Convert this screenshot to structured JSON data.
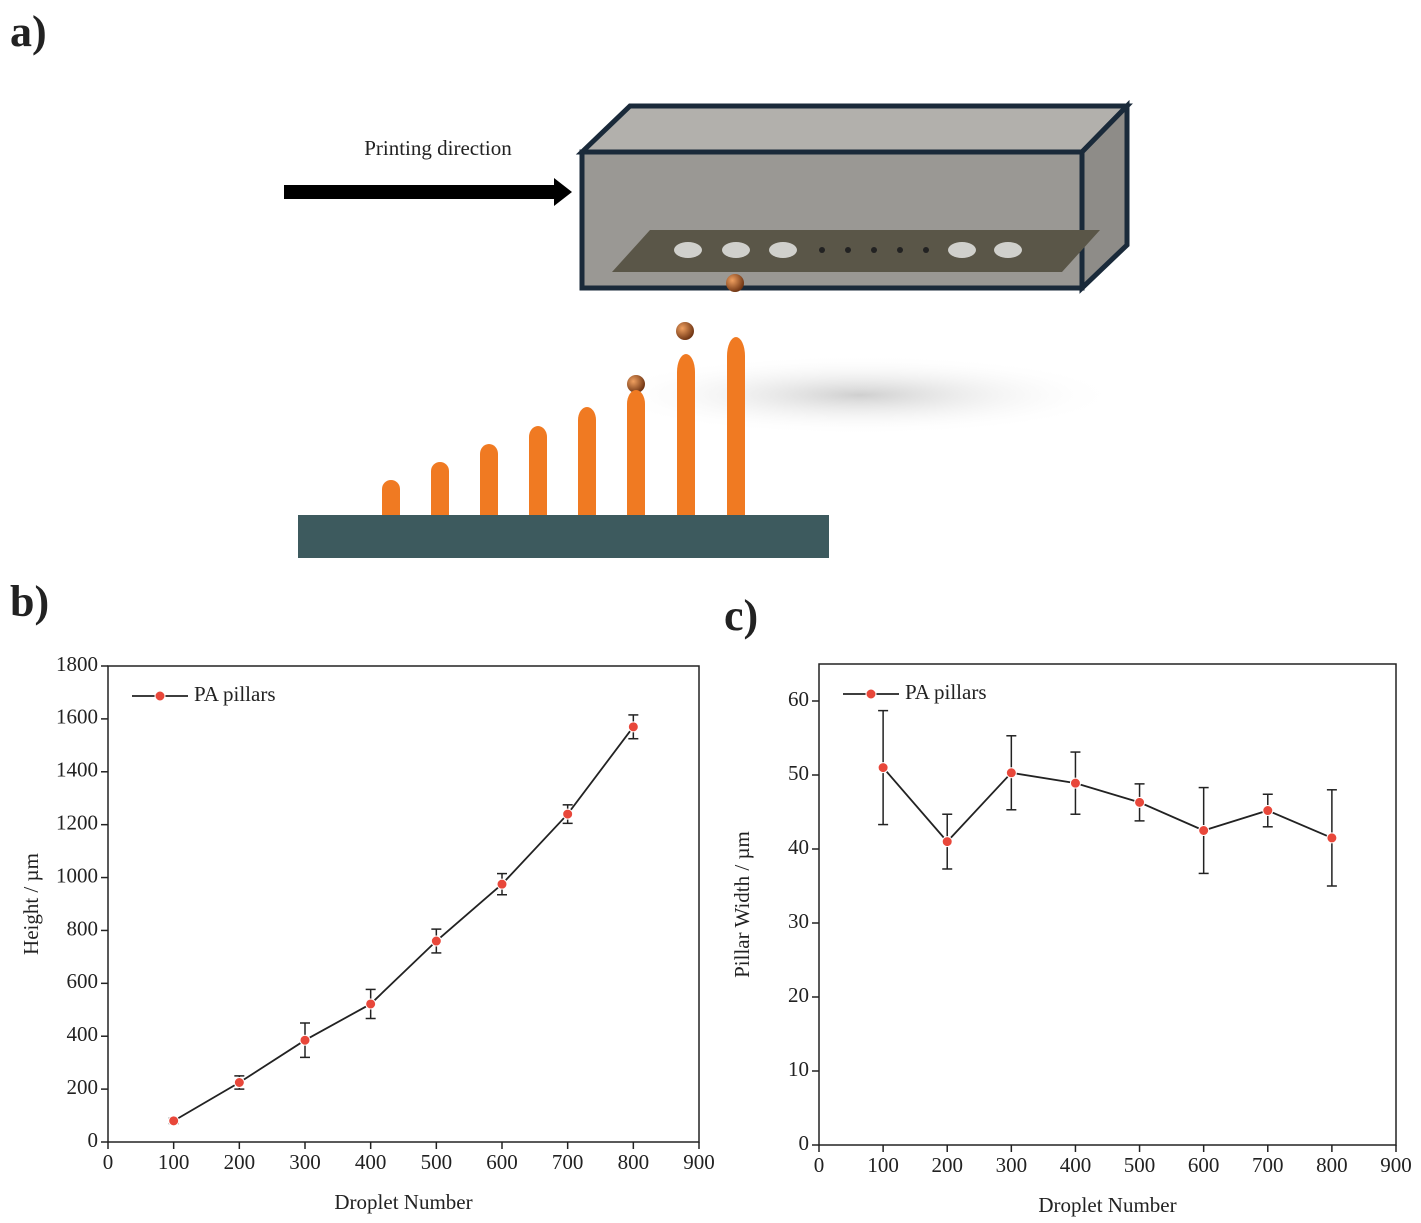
{
  "panel_labels": [
    "a)",
    "b)",
    "c)"
  ],
  "diagram": {
    "arrow_label": "Printing direction"
  },
  "chart_data": [
    {
      "type": "line",
      "xlabel": "Droplet Number",
      "ylabel": "Height / µm",
      "x": [
        100,
        200,
        300,
        400,
        500,
        600,
        700,
        800
      ],
      "series": [
        {
          "name": "PA pillars",
          "color": "#e8473a",
          "values": [
            80,
            225,
            385,
            522,
            760,
            975,
            1240,
            1570
          ],
          "errors": [
            10,
            25,
            65,
            55,
            45,
            40,
            35,
            45
          ]
        }
      ],
      "xlim": [
        0,
        900
      ],
      "xticks": [
        0,
        100,
        200,
        300,
        400,
        500,
        600,
        700,
        800,
        900
      ],
      "ylim": [
        0,
        1800
      ],
      "yticks": [
        0,
        200,
        400,
        600,
        800,
        1000,
        1200,
        1400,
        1600,
        1800
      ],
      "legend": "upper left"
    },
    {
      "type": "line",
      "xlabel": "Droplet Number",
      "ylabel": "Pillar Width / µm",
      "x": [
        100,
        200,
        300,
        400,
        500,
        600,
        700,
        800
      ],
      "series": [
        {
          "name": "PA pillars",
          "color": "#e8473a",
          "values": [
            51,
            41,
            50.3,
            48.9,
            46.3,
            42.5,
            45.2,
            41.5
          ],
          "errors": [
            7.7,
            3.7,
            5,
            4.2,
            2.5,
            5.8,
            2.2,
            6.5
          ]
        }
      ],
      "xlim": [
        0,
        900
      ],
      "xticks": [
        0,
        100,
        200,
        300,
        400,
        500,
        600,
        700,
        800,
        900
      ],
      "ylim": [
        0,
        65
      ],
      "yticks": [
        0,
        10,
        20,
        30,
        40,
        50,
        60
      ],
      "legend": "upper left"
    }
  ]
}
